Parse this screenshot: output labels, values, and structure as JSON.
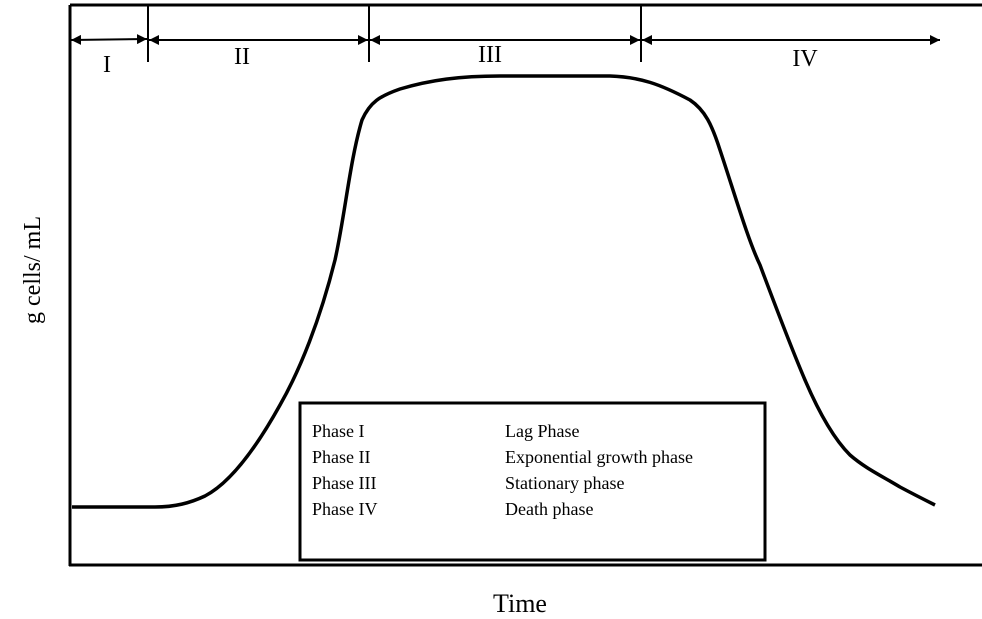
{
  "axes": {
    "y_label": "g cells/ mL",
    "x_label": "Time"
  },
  "phases": [
    "I",
    "II",
    "III",
    "IV"
  ],
  "legend": {
    "rows": [
      [
        "Phase I",
        "Lag Phase"
      ],
      [
        "Phase II",
        "Exponential growth phase"
      ],
      [
        "Phase III",
        "Stationary phase"
      ],
      [
        "Phase IV",
        "Death phase"
      ]
    ]
  }
}
